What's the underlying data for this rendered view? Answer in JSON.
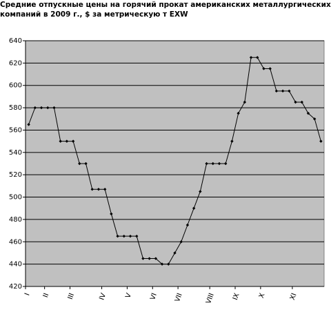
{
  "chart_data": {
    "type": "line",
    "title": "Средние отпускные цены на горячий прокат американских металлургических компаний в 2009 г., $ за метрическую т EXW",
    "categories": [
      "I",
      null,
      null,
      "II",
      null,
      null,
      null,
      "III",
      null,
      null,
      null,
      null,
      "IV",
      null,
      null,
      null,
      "V",
      null,
      null,
      null,
      "VI",
      null,
      null,
      null,
      "VII",
      null,
      null,
      null,
      null,
      "VIII",
      null,
      null,
      null,
      "IX",
      null,
      null,
      null,
      "X",
      null,
      null,
      null,
      null,
      "XI",
      null,
      null,
      null,
      null
    ],
    "values": [
      565,
      580,
      580,
      580,
      580,
      550,
      550,
      550,
      530,
      530,
      507,
      507,
      507,
      485,
      465,
      465,
      465,
      465,
      445,
      445,
      445,
      440,
      440,
      450,
      460,
      475,
      490,
      505,
      530,
      530,
      530,
      530,
      550,
      575,
      585,
      625,
      625,
      615,
      615,
      595,
      595,
      595,
      585,
      585,
      575,
      570,
      550
    ],
    "color": "#000000",
    "ylim": [
      420,
      640
    ],
    "yticks": [
      420,
      440,
      460,
      480,
      500,
      520,
      540,
      560,
      580,
      600,
      620,
      640
    ],
    "grid": true
  }
}
